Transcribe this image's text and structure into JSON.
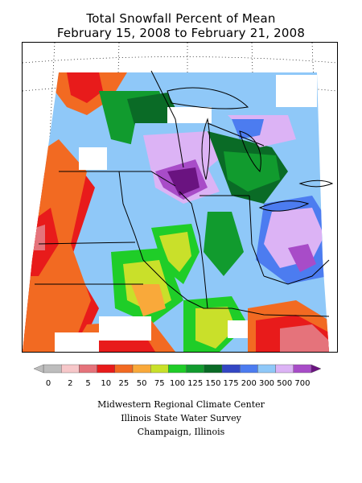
{
  "map": {
    "title_line1": "Total Snowfall Percent of Mean",
    "title_line2": "February 15, 2008 to February 21, 2008"
  },
  "legend": {
    "bins": [
      {
        "label": "0",
        "color": "#bdbdbd"
      },
      {
        "label": "2",
        "color": "#f6c7c9"
      },
      {
        "label": "5",
        "color": "#e5737b"
      },
      {
        "label": "10",
        "color": "#e81b1b"
      },
      {
        "label": "25",
        "color": "#f26a22"
      },
      {
        "label": "50",
        "color": "#f9a93a"
      },
      {
        "label": "75",
        "color": "#c9e02a"
      },
      {
        "label": "100",
        "color": "#1fcd28"
      },
      {
        "label": "125",
        "color": "#119b2e"
      },
      {
        "label": "150",
        "color": "#0a6b26"
      },
      {
        "label": "175",
        "color": "#3347c4"
      },
      {
        "label": "200",
        "color": "#4c7cf0"
      },
      {
        "label": "300",
        "color": "#8fc8f8"
      },
      {
        "label": "500",
        "color": "#dcb3f5"
      },
      {
        "label": "700",
        "color": "#a84cc8"
      }
    ],
    "over_color": "#6a1380"
  },
  "footer": {
    "line1": "Midwestern Regional Climate Center",
    "line2": "Illinois State Water Survey",
    "line3": "Champaign, Illinois"
  }
}
